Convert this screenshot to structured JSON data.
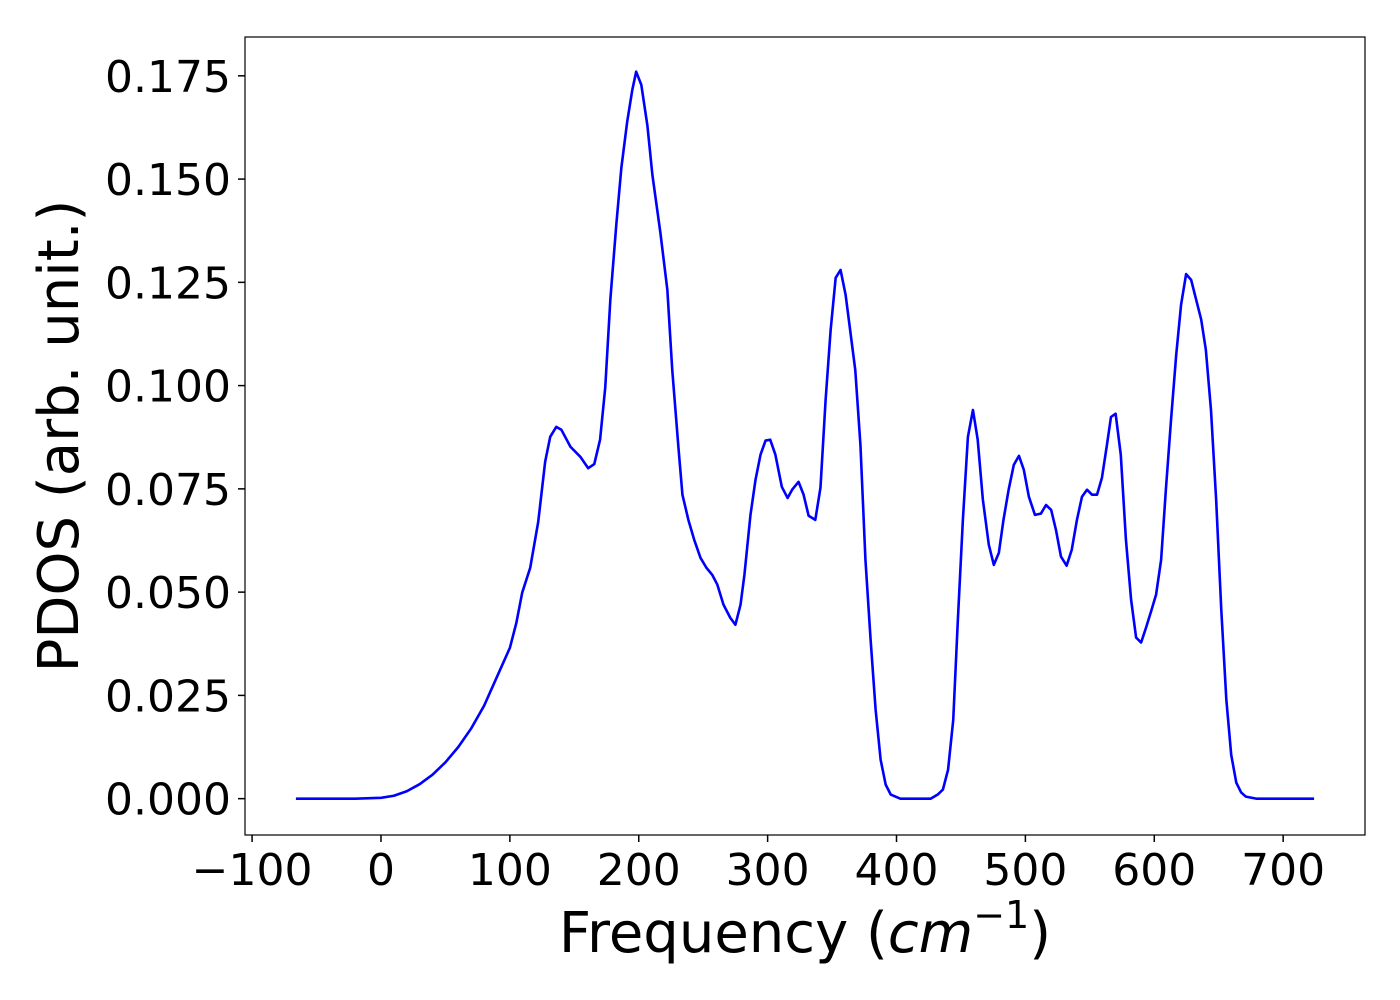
{
  "chart_data": {
    "type": "line",
    "xlabel": [
      "Frequency (",
      "cm",
      "−1",
      ")"
    ],
    "ylabel": "PDOS (arb. unit.)",
    "xlim": [
      -105.5,
      763.5
    ],
    "ylim": [
      -0.0088,
      0.1844
    ],
    "xticks": [
      {
        "value": -100,
        "label": "−100"
      },
      0,
      100,
      200,
      300,
      400,
      500,
      600,
      700
    ],
    "yticks": [
      {
        "value": 0,
        "label": "0.000"
      },
      0.025,
      {
        "value": 0.05,
        "label": "0.050"
      },
      0.075,
      {
        "value": 0.1,
        "label": "0.100"
      },
      0.125,
      {
        "value": 0.15,
        "label": "0.150"
      },
      0.175
    ],
    "grid": false,
    "x": [
      -66,
      -40,
      -20,
      0,
      10,
      20,
      30,
      40,
      50,
      60,
      70,
      80,
      90,
      100,
      105,
      109.6,
      115.8,
      122,
      127.4,
      131.3,
      136,
      140,
      147,
      154.6,
      160.8,
      165.5,
      170,
      174,
      178,
      182.6,
      186.5,
      191,
      195,
      198,
      202,
      206.7,
      210.6,
      216.8,
      222.2,
      226,
      230.8,
      233.9,
      238.5,
      243,
      247.9,
      252.5,
      257,
      261,
      265.7,
      271,
      275,
      279,
      282,
      286.7,
      290.6,
      294.5,
      298.4,
      302,
      306,
      311,
      315.5,
      319,
      324,
      327.9,
      331.8,
      337,
      341,
      345,
      348.9,
      352.8,
      356.6,
      360.5,
      364,
      368,
      372,
      375.9,
      379.9,
      383.8,
      387.7,
      391.6,
      395.5,
      403,
      426.6,
      432,
      436,
      440,
      444,
      447.6,
      451.5,
      455.4,
      459.3,
      463,
      467,
      471.6,
      475.5,
      479.4,
      483,
      487,
      491,
      495,
      498.8,
      502.7,
      507.4,
      512,
      516,
      520,
      523.7,
      527.6,
      532,
      536,
      540,
      543.9,
      547.8,
      551.7,
      555.6,
      559.4,
      563.3,
      566.4,
      570,
      574,
      578,
      582,
      585.9,
      589.8,
      593.6,
      597.5,
      601.4,
      605.3,
      609,
      613,
      617,
      620.8,
      624.7,
      628.6,
      632.5,
      636.4,
      640,
      644,
      648,
      652,
      655.9,
      659.7,
      663.6,
      667.4,
      671,
      679,
      724
    ],
    "series": [
      {
        "name": "PDOS",
        "color": "#0000ff",
        "values": [
          0,
          0,
          0,
          0.0002,
          0.0007,
          0.0018,
          0.0035,
          0.0058,
          0.0088,
          0.0125,
          0.017,
          0.0225,
          0.0295,
          0.0365,
          0.0425,
          0.0499,
          0.0559,
          0.067,
          0.0816,
          0.0876,
          0.09,
          0.0893,
          0.0852,
          0.0828,
          0.08,
          0.081,
          0.0869,
          0.0995,
          0.121,
          0.139,
          0.1527,
          0.1638,
          0.1716,
          0.176,
          0.1728,
          0.163,
          0.151,
          0.137,
          0.1232,
          0.1038,
          0.085,
          0.0736,
          0.0675,
          0.0627,
          0.0583,
          0.0559,
          0.0542,
          0.0518,
          0.047,
          0.0438,
          0.0421,
          0.047,
          0.0542,
          0.0687,
          0.0772,
          0.0833,
          0.0867,
          0.0869,
          0.0833,
          0.0755,
          0.0728,
          0.0748,
          0.0767,
          0.0736,
          0.0685,
          0.0675,
          0.0753,
          0.0966,
          0.1135,
          0.1261,
          0.128,
          0.122,
          0.1135,
          0.1038,
          0.0857,
          0.0578,
          0.0385,
          0.0215,
          0.0094,
          0.0034,
          0.001,
          0,
          0,
          0.001,
          0.0022,
          0.007,
          0.019,
          0.0433,
          0.0675,
          0.0876,
          0.0941,
          0.0869,
          0.0724,
          0.0615,
          0.0566,
          0.0595,
          0.0675,
          0.0748,
          0.0808,
          0.083,
          0.0796,
          0.0731,
          0.0687,
          0.069,
          0.0711,
          0.0699,
          0.0651,
          0.0586,
          0.0564,
          0.0603,
          0.0675,
          0.0731,
          0.0748,
          0.0736,
          0.0736,
          0.0777,
          0.0857,
          0.0924,
          0.0932,
          0.0833,
          0.0627,
          0.0482,
          0.039,
          0.0378,
          0.0414,
          0.0453,
          0.0494,
          0.0578,
          0.0748,
          0.0917,
          0.1074,
          0.1196,
          0.127,
          0.1256,
          0.1208,
          0.116,
          0.1087,
          0.0941,
          0.0724,
          0.0457,
          0.024,
          0.0106,
          0.0039,
          0.0015,
          0.0005,
          0,
          0
        ]
      }
    ]
  }
}
